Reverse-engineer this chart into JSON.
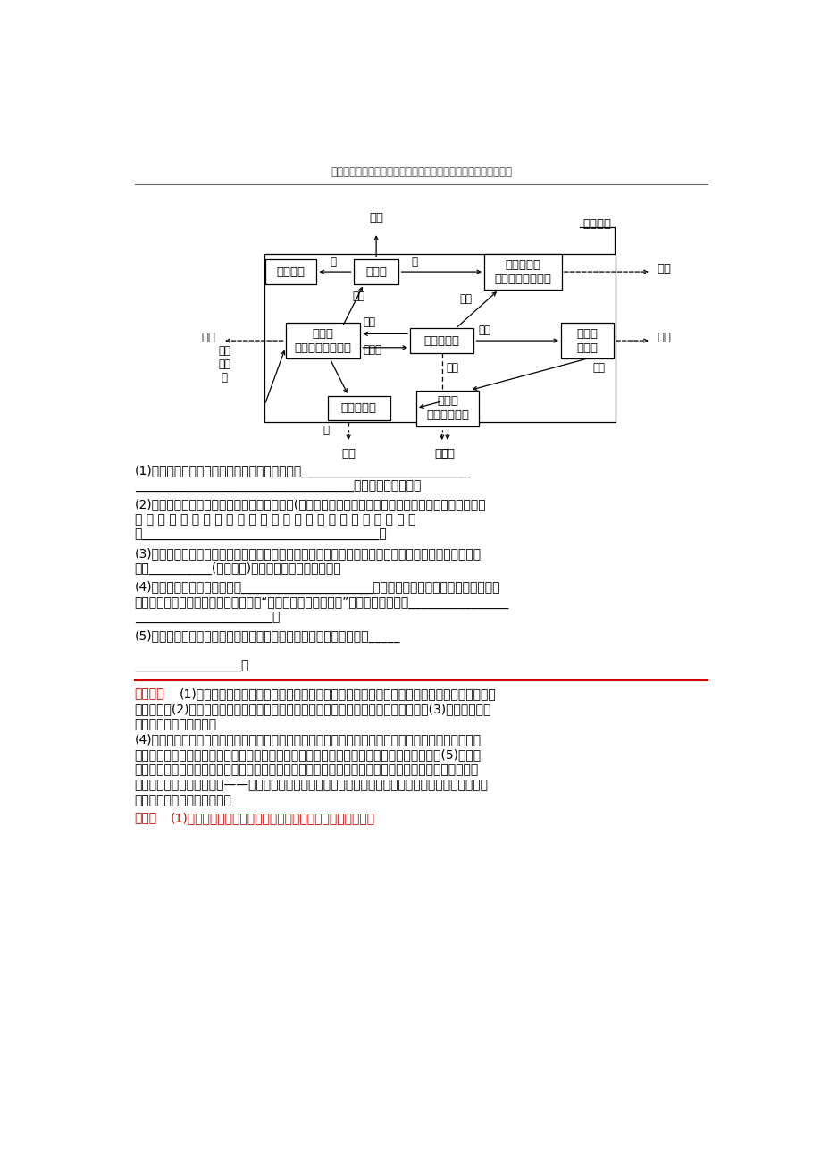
{
  "header": "最新学习考试资料试卷件及海量高中、初中教学课尽在金锐头文库",
  "bg_color": "#ffffff",
  "red_color": "#cc0000",
  "box_nainiu": "奶牛场",
  "box_feidan": "蛆蛆兿殖",
  "box_shiyong": "食用菌种植\n（蠕菇、猴头菇）",
  "box_zhongzhi": "种植业\n（稻、麦、蔬菜）",
  "box_zhaoqi": "沼气发酵池",
  "box_chuiy": "垂锤园\n（鱼）",
  "box_jiya": "鸡鸭兿殖场",
  "box_caimo": "采摘园\n（草莓、梨）",
  "lbl_niunai": "牛奶",
  "lbl_danbailianliao": "蛋白饰料",
  "lbl_fen1": "糪",
  "lbl_fen2": "糪",
  "lbl_jiegang": "秸秆",
  "lbl_zhaoya": "沼液",
  "lbl_feiqi": "废弃物",
  "lbl_zhaozha1": "沼渣",
  "lbl_zhaozha2": "沼渣",
  "lbl_zhaoya2": "沼液",
  "lbl_chini": "池泥",
  "lbl_fen3": "糪",
  "lbl_output_left": "输出",
  "lbl_output_r1": "输出",
  "lbl_output_r2": "输出",
  "lbl_bottom1": "输出",
  "lbl_bottom2": "沼气",
  "lbl_bottom3": "输出",
  "lbl_danbailianliao2": "蛋白\n饰料\n料",
  "q1a": "(1)该生态农业园建设主要依据的生态工程原理有___________________________",
  "q1b": "___________________________________（至少写出２个）。",
  "q2a": "(2)池塘兿鱼时，通常采用多鱼种混合放兿模式(上层为食浮游生物的鲢鱼，中层为食草的草鱼，下层为杂",
  "q2b": "食 性 的 鲧 鱼 等 ） 。 从 群 落 结 构 分 析 ， 这 种 兿 殖 模 式 的 优 点",
  "q2c": "是______________________________________。",
  "q3a": "(3)防治果树虫害时，常利用性引证剂来诱捕害虫或干扰交配，从而降低害虫种群密度。这属于生态系统",
  "q3b": "中的__________(信息类型)传递在农业生产中的应用。",
  "q4a": "(4)流入该生态农业的总能量有_____________________和人工输入的能量，人工输入的能量有",
  "q4b": "（至少２项）等。该生态农业园增加了“蛆蛆兿殖、食用菌种植”等项目，其意义是________________",
  "q4c": "______________________。",
  "q5a": "(5)根据图示，用箭头表示生态系统三类生物成分之间的能量流动关系_____",
  "q5b": "_________________。",
  "ana_title": "【解析】",
  "ana1": "(1)观察图解，可以看出该生态工程能体现出的原理有物质循环再生、物种多样性以及协调与平",
  "ana2": "衡原理等。(2)群落在垂直结构上的分层现象可以充分利用生态系统的空间和食物资源。(3)性引证剂是化",
  "ana3": "学物质，属于化学信息。",
  "ana4": "(4)生态工程是人类设计的，人的作用尤其突出。除生产者固定的太阳能之外，人工输入的能量包括很多",
  "ana5": "方面：生产者、消费者等生物成分体内含有机物，蕴藏着能量；电力、石油等能源的输入等。(5)生态系",
  "ana6": "统的三种生物成分是生产者、消费者和分解者。比起一般的生态系统，图中所展示的多了一条能量流动的",
  "ana7": "去向，即分解者流向消费者——人。但这并不是说能量可以循环利用，因为消费者和分解者之间的两个箭",
  "ana8": "头所包含的能量是不一样的。",
  "ans_title": "答案：",
  "ans_text": "(1)物质循环再生原理、物种多样性原理、协调与平衡原理等"
}
